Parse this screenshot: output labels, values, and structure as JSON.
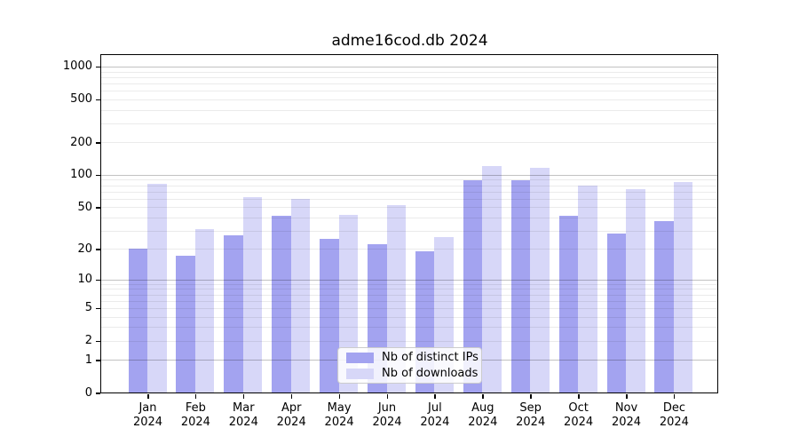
{
  "chart_data": {
    "type": "bar",
    "title": "adme16cod.db 2024",
    "categories": [
      "Jan",
      "Feb",
      "Mar",
      "Apr",
      "May",
      "Jun",
      "Jul",
      "Aug",
      "Sep",
      "Oct",
      "Nov",
      "Dec"
    ],
    "year_label": "2024",
    "series": [
      {
        "name": "Nb of distinct IPs",
        "color": "#a3a3f0",
        "values": [
          20,
          17,
          27,
          41,
          25,
          22,
          19,
          89,
          89,
          41,
          28,
          37
        ]
      },
      {
        "name": "Nb of downloads",
        "color": "#d7d7f8",
        "values": [
          82,
          31,
          62,
          60,
          42,
          52,
          26,
          120,
          117,
          80,
          74,
          85
        ]
      }
    ],
    "yscale": "log1p",
    "yticks": [
      0,
      1,
      2,
      5,
      10,
      20,
      50,
      100,
      200,
      500,
      1000
    ],
    "minor_gridlines": [
      2,
      3,
      4,
      5,
      6,
      7,
      8,
      9,
      20,
      30,
      40,
      50,
      60,
      70,
      80,
      90,
      200,
      300,
      400,
      500,
      600,
      700,
      800,
      900
    ],
    "major_gridlines": [
      1,
      10,
      100,
      1000
    ],
    "ylim": [
      0,
      1275
    ],
    "xlabel": "",
    "ylabel": "",
    "grid": true,
    "legend_position": "lower-center-inside",
    "colors": {
      "bar_distinct_ips": "#a3a3f0",
      "bar_downloads": "#d7d7f8",
      "spine": "#000000",
      "background": "#ffffff"
    }
  }
}
